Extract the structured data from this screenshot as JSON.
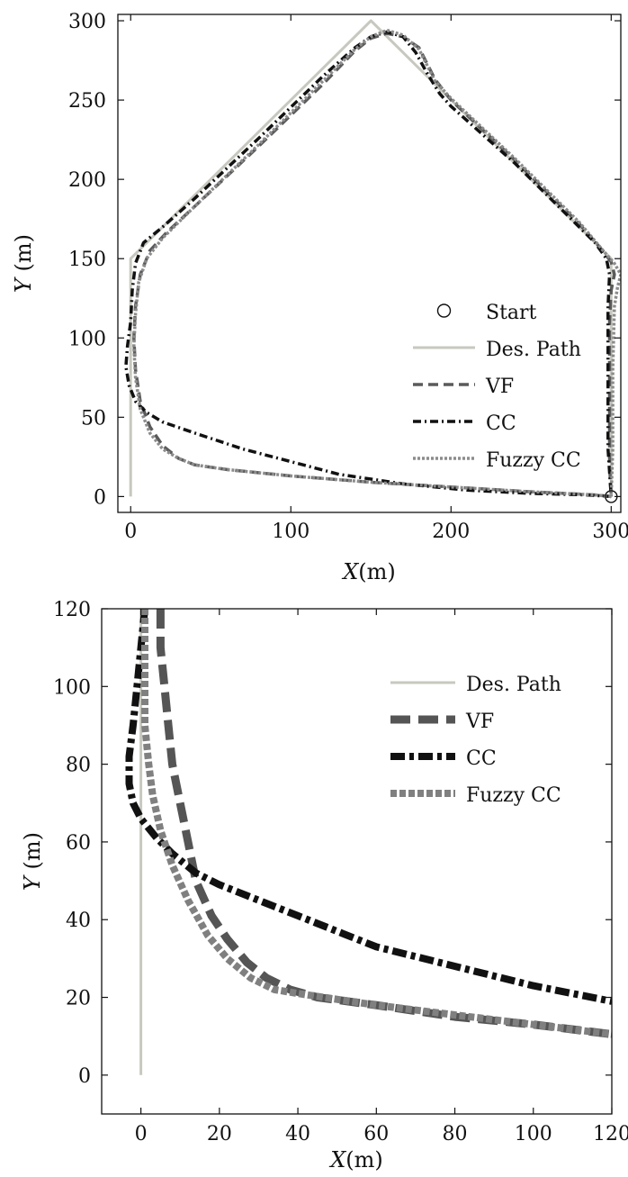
{
  "chart_data": [
    {
      "type": "line",
      "xlabel": {
        "var": "X",
        "unit": "(m)"
      },
      "ylabel": {
        "var": "Y",
        "unit": "(m)"
      },
      "xlim": [
        -8,
        306
      ],
      "ylim": [
        -10,
        304
      ],
      "xticks": [
        "0",
        "100",
        "200",
        "300"
      ],
      "yticks": [
        "0",
        "50",
        "100",
        "150",
        "200",
        "250",
        "300"
      ],
      "xtick_values": [
        0,
        100,
        200,
        300
      ],
      "ytick_values": [
        0,
        50,
        100,
        150,
        200,
        250,
        300
      ],
      "grid": false,
      "legend_position": "right",
      "legend": [
        "Start",
        "Des. Path",
        "VF",
        "CC",
        "Fuzzy CC"
      ],
      "start_point": {
        "x": 300,
        "y": 0
      },
      "series": [
        {
          "name": "Des. Path",
          "color": "#c8c8c0",
          "style": "solid",
          "points": [
            [
              0,
              0
            ],
            [
              0,
              150
            ],
            [
              150,
              300
            ],
            [
              300,
              150
            ],
            [
              300,
              0
            ]
          ]
        },
        {
          "name": "VF",
          "color": "#5a5a5a",
          "style": "dashed",
          "points": [
            [
              300,
              0
            ],
            [
              290,
              1
            ],
            [
              250,
              3
            ],
            [
              200,
              6
            ],
            [
              150,
              9
            ],
            [
              100,
              13
            ],
            [
              60,
              17
            ],
            [
              40,
              20
            ],
            [
              30,
              24
            ],
            [
              20,
              32
            ],
            [
              12,
              44
            ],
            [
              6,
              60
            ],
            [
              3,
              80
            ],
            [
              2,
              100
            ],
            [
              3,
              120
            ],
            [
              6,
              140
            ],
            [
              12,
              155
            ],
            [
              22,
              166
            ],
            [
              40,
              183
            ],
            [
              80,
              221
            ],
            [
              120,
              260
            ],
            [
              140,
              281
            ],
            [
              150,
              289
            ],
            [
              160,
              292
            ],
            [
              170,
              290
            ],
            [
              180,
              283
            ],
            [
              190,
              263
            ],
            [
              200,
              250
            ],
            [
              240,
              212
            ],
            [
              280,
              172
            ],
            [
              293,
              157
            ],
            [
              300,
              148
            ],
            [
              302,
              140
            ],
            [
              300,
              130
            ],
            [
              299,
              110
            ],
            [
              299,
              70
            ],
            [
              299,
              20
            ],
            [
              300,
              0
            ]
          ]
        },
        {
          "name": "CC",
          "color": "#111111",
          "style": "dashdot",
          "points": [
            [
              300,
              0
            ],
            [
              285,
              1
            ],
            [
              250,
              2
            ],
            [
              210,
              4
            ],
            [
              170,
              8
            ],
            [
              130,
              14
            ],
            [
              100,
              22
            ],
            [
              70,
              30
            ],
            [
              40,
              40
            ],
            [
              20,
              47
            ],
            [
              10,
              53
            ],
            [
              3,
              60
            ],
            [
              -1,
              70
            ],
            [
              -3,
              82
            ],
            [
              -2,
              95
            ],
            [
              0,
              110
            ],
            [
              1,
              130
            ],
            [
              3,
              147
            ],
            [
              8,
              160
            ],
            [
              20,
              170
            ],
            [
              40,
              188
            ],
            [
              80,
              226
            ],
            [
              120,
              265
            ],
            [
              140,
              283
            ],
            [
              150,
              290
            ],
            [
              160,
              293
            ],
            [
              170,
              290
            ],
            [
              178,
              280
            ],
            [
              185,
              267
            ],
            [
              193,
              254
            ],
            [
              200,
              246
            ],
            [
              240,
              210
            ],
            [
              280,
              170
            ],
            [
              290,
              160
            ],
            [
              297,
              150
            ],
            [
              299,
              140
            ],
            [
              298,
              120
            ],
            [
              298,
              80
            ],
            [
              298,
              30
            ],
            [
              300,
              0
            ]
          ]
        },
        {
          "name": "Fuzzy CC",
          "color": "#8c8c8c",
          "style": "dotted",
          "points": [
            [
              300,
              0
            ],
            [
              290,
              1
            ],
            [
              250,
              3
            ],
            [
              200,
              6
            ],
            [
              150,
              9
            ],
            [
              100,
              13
            ],
            [
              60,
              17
            ],
            [
              40,
              20
            ],
            [
              30,
              24
            ],
            [
              20,
              30
            ],
            [
              12,
              40
            ],
            [
              6,
              55
            ],
            [
              3,
              75
            ],
            [
              2,
              95
            ],
            [
              3,
              115
            ],
            [
              5,
              135
            ],
            [
              10,
              150
            ],
            [
              20,
              163
            ],
            [
              40,
              183
            ],
            [
              80,
              222
            ],
            [
              120,
              262
            ],
            [
              140,
              282
            ],
            [
              150,
              290
            ],
            [
              160,
              294
            ],
            [
              170,
              291
            ],
            [
              180,
              282
            ],
            [
              190,
              262
            ],
            [
              200,
              251
            ],
            [
              240,
              213
            ],
            [
              280,
              173
            ],
            [
              295,
              155
            ],
            [
              302,
              147
            ],
            [
              306,
              140
            ],
            [
              304,
              132
            ],
            [
              302,
              120
            ],
            [
              301,
              80
            ],
            [
              301,
              30
            ],
            [
              300,
              0
            ]
          ]
        }
      ]
    },
    {
      "type": "line",
      "xlabel": {
        "var": "X",
        "unit": "(m)"
      },
      "ylabel": {
        "var": "Y",
        "unit": "(m)"
      },
      "xlim": [
        -10,
        120
      ],
      "ylim": [
        -10,
        120
      ],
      "xticks": [
        "0",
        "20",
        "40",
        "60",
        "80",
        "100",
        "120"
      ],
      "yticks": [
        "0",
        "20",
        "40",
        "60",
        "80",
        "100",
        "120"
      ],
      "xtick_values": [
        0,
        20,
        40,
        60,
        80,
        100,
        120
      ],
      "ytick_values": [
        0,
        20,
        40,
        60,
        80,
        100,
        120
      ],
      "grid": false,
      "legend_position": "top-right",
      "legend": [
        "Des. Path",
        "VF",
        "CC",
        "Fuzzy CC"
      ],
      "series": [
        {
          "name": "Des. Path",
          "color": "#c8c8c0",
          "style": "solid",
          "points": [
            [
              0,
              0
            ],
            [
              0,
              120
            ]
          ]
        },
        {
          "name": "VF",
          "color": "#555555",
          "style": "dashed",
          "points": [
            [
              5,
              120
            ],
            [
              5,
              110
            ],
            [
              6,
              100
            ],
            [
              7,
              90
            ],
            [
              8,
              80
            ],
            [
              10,
              70
            ],
            [
              12,
              60
            ],
            [
              14,
              50
            ],
            [
              18,
              41
            ],
            [
              22,
              35
            ],
            [
              27,
              29
            ],
            [
              32,
              25
            ],
            [
              38,
              22
            ],
            [
              45,
              20
            ],
            [
              60,
              18
            ],
            [
              80,
              15
            ],
            [
              100,
              13
            ],
            [
              120,
              10.5
            ]
          ]
        },
        {
          "name": "CC",
          "color": "#111111",
          "style": "dashdot",
          "points": [
            [
              1,
              120
            ],
            [
              0,
              110
            ],
            [
              -1,
              100
            ],
            [
              -2,
              90
            ],
            [
              -3,
              82
            ],
            [
              -3,
              75
            ],
            [
              -2,
              70
            ],
            [
              0,
              66
            ],
            [
              4,
              61
            ],
            [
              8,
              57
            ],
            [
              14,
              52
            ],
            [
              20,
              49
            ],
            [
              30,
              45
            ],
            [
              40,
              41
            ],
            [
              60,
              33
            ],
            [
              80,
              28
            ],
            [
              100,
              23
            ],
            [
              120,
              19
            ]
          ]
        },
        {
          "name": "Fuzzy CC",
          "color": "#808080",
          "style": "dotted",
          "points": [
            [
              1,
              120
            ],
            [
              1,
              110
            ],
            [
              1,
              100
            ],
            [
              1,
              90
            ],
            [
              2,
              80
            ],
            [
              3,
              72
            ],
            [
              5,
              63
            ],
            [
              8,
              54
            ],
            [
              12,
              45
            ],
            [
              17,
              36
            ],
            [
              22,
              30
            ],
            [
              28,
              25
            ],
            [
              34,
              22
            ],
            [
              40,
              21
            ],
            [
              60,
              18
            ],
            [
              80,
              15.5
            ],
            [
              100,
              13
            ],
            [
              120,
              10.5
            ]
          ]
        }
      ]
    }
  ]
}
